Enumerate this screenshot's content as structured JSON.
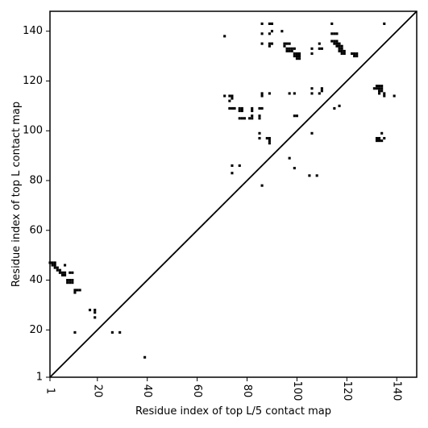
{
  "chart_data": {
    "type": "scatter",
    "title": "",
    "xlabel": "Residue index of top L/5 contact map",
    "ylabel": "Residue index of top L contact map",
    "xlim": [
      1,
      148
    ],
    "ylim": [
      1,
      148
    ],
    "xticks": [
      1,
      20,
      40,
      60,
      80,
      100,
      120,
      140
    ],
    "xtick_labels": [
      "1",
      "20",
      "40",
      "60",
      "80",
      "100",
      "120",
      "140"
    ],
    "yticks": [
      1,
      20,
      40,
      60,
      80,
      100,
      120,
      140
    ],
    "ytick_labels": [
      "1",
      "20",
      "40",
      "60",
      "80",
      "100",
      "120",
      "140"
    ],
    "diagonal": {
      "from": [
        1,
        1
      ],
      "to": [
        148,
        148
      ]
    },
    "grid": false,
    "legend": "none",
    "marker": "filled black square",
    "colors": {
      "marker": "#000000",
      "axis": "#000000",
      "background": "#ffffff"
    },
    "series": [
      {
        "points": [
          [
            1,
            47
          ],
          [
            2,
            47
          ],
          [
            3,
            47
          ],
          [
            2,
            46
          ],
          [
            3,
            46
          ],
          [
            3,
            45
          ],
          [
            4,
            45
          ],
          [
            4,
            44
          ],
          [
            5,
            44
          ],
          [
            5,
            43
          ],
          [
            6,
            43
          ],
          [
            6,
            42
          ],
          [
            7,
            42
          ],
          [
            7,
            43
          ],
          [
            7,
            46
          ],
          [
            8,
            40
          ],
          [
            9,
            40
          ],
          [
            10,
            40
          ],
          [
            8,
            39
          ],
          [
            9,
            39
          ],
          [
            10,
            39
          ],
          [
            9,
            43
          ],
          [
            10,
            43
          ],
          [
            11,
            36
          ],
          [
            12,
            36
          ],
          [
            11,
            35
          ],
          [
            13,
            36
          ],
          [
            11,
            19
          ],
          [
            17,
            28
          ],
          [
            19,
            28
          ],
          [
            19,
            27
          ],
          [
            19,
            25
          ],
          [
            26,
            19
          ],
          [
            29,
            19
          ],
          [
            39,
            9
          ],
          [
            71,
            138
          ],
          [
            71,
            114
          ],
          [
            73,
            114
          ],
          [
            74,
            114
          ],
          [
            74,
            113
          ],
          [
            73,
            112
          ],
          [
            73,
            109
          ],
          [
            74,
            109
          ],
          [
            75,
            109
          ],
          [
            74,
            86
          ],
          [
            74,
            83
          ],
          [
            77,
            86
          ],
          [
            77,
            109
          ],
          [
            77,
            108
          ],
          [
            78,
            109
          ],
          [
            78,
            108
          ],
          [
            77,
            105
          ],
          [
            78,
            105
          ],
          [
            79,
            105
          ],
          [
            81,
            105
          ],
          [
            82,
            105
          ],
          [
            82,
            106
          ],
          [
            82,
            109
          ],
          [
            82,
            108
          ],
          [
            85,
            109
          ],
          [
            86,
            109
          ],
          [
            85,
            106
          ],
          [
            85,
            105
          ],
          [
            85,
            99
          ],
          [
            85,
            97
          ],
          [
            86,
            115
          ],
          [
            86,
            114
          ],
          [
            86,
            78
          ],
          [
            86,
            143
          ],
          [
            86,
            139
          ],
          [
            86,
            135
          ],
          [
            88,
            97
          ],
          [
            89,
            97
          ],
          [
            89,
            96
          ],
          [
            89,
            95
          ],
          [
            89,
            115
          ],
          [
            89,
            143
          ],
          [
            90,
            143
          ],
          [
            89,
            139
          ],
          [
            90,
            140
          ],
          [
            89,
            135
          ],
          [
            90,
            135
          ],
          [
            89,
            134
          ],
          [
            94,
            140
          ],
          [
            95,
            135
          ],
          [
            96,
            135
          ],
          [
            97,
            135
          ],
          [
            95,
            134
          ],
          [
            96,
            133
          ],
          [
            97,
            133
          ],
          [
            96,
            132
          ],
          [
            97,
            132
          ],
          [
            98,
            133
          ],
          [
            99,
            133
          ],
          [
            98,
            132
          ],
          [
            99,
            131
          ],
          [
            100,
            131
          ],
          [
            101,
            131
          ],
          [
            99,
            130
          ],
          [
            100,
            130
          ],
          [
            101,
            130
          ],
          [
            100,
            129
          ],
          [
            101,
            129
          ],
          [
            97,
            115
          ],
          [
            99,
            115
          ],
          [
            97,
            89
          ],
          [
            99,
            85
          ],
          [
            99,
            106
          ],
          [
            100,
            106
          ],
          [
            105,
            82
          ],
          [
            106,
            99
          ],
          [
            106,
            133
          ],
          [
            106,
            131
          ],
          [
            106,
            117
          ],
          [
            106,
            115
          ],
          [
            108,
            82
          ],
          [
            109,
            135
          ],
          [
            109,
            133
          ],
          [
            110,
            133
          ],
          [
            109,
            115
          ],
          [
            110,
            116
          ],
          [
            110,
            117
          ],
          [
            114,
            143
          ],
          [
            114,
            139
          ],
          [
            115,
            139
          ],
          [
            116,
            139
          ],
          [
            114,
            136
          ],
          [
            115,
            136
          ],
          [
            116,
            136
          ],
          [
            115,
            135
          ],
          [
            116,
            135
          ],
          [
            117,
            135
          ],
          [
            116,
            134
          ],
          [
            117,
            134
          ],
          [
            118,
            134
          ],
          [
            117,
            133
          ],
          [
            118,
            133
          ],
          [
            117,
            132
          ],
          [
            118,
            132
          ],
          [
            119,
            132
          ],
          [
            118,
            131
          ],
          [
            119,
            131
          ],
          [
            115,
            109
          ],
          [
            117,
            110
          ],
          [
            122,
            131
          ],
          [
            123,
            131
          ],
          [
            124,
            131
          ],
          [
            123,
            130
          ],
          [
            124,
            130
          ],
          [
            131,
            117
          ],
          [
            132,
            117
          ],
          [
            132,
            118
          ],
          [
            133,
            118
          ],
          [
            134,
            118
          ],
          [
            133,
            117
          ],
          [
            134,
            117
          ],
          [
            133,
            116
          ],
          [
            134,
            116
          ],
          [
            133,
            115
          ],
          [
            135,
            115
          ],
          [
            135,
            114
          ],
          [
            134,
            99
          ],
          [
            132,
            97
          ],
          [
            133,
            97
          ],
          [
            135,
            97
          ],
          [
            132,
            96
          ],
          [
            133,
            96
          ],
          [
            134,
            96
          ],
          [
            135,
            143
          ],
          [
            139,
            114
          ]
        ]
      }
    ]
  }
}
